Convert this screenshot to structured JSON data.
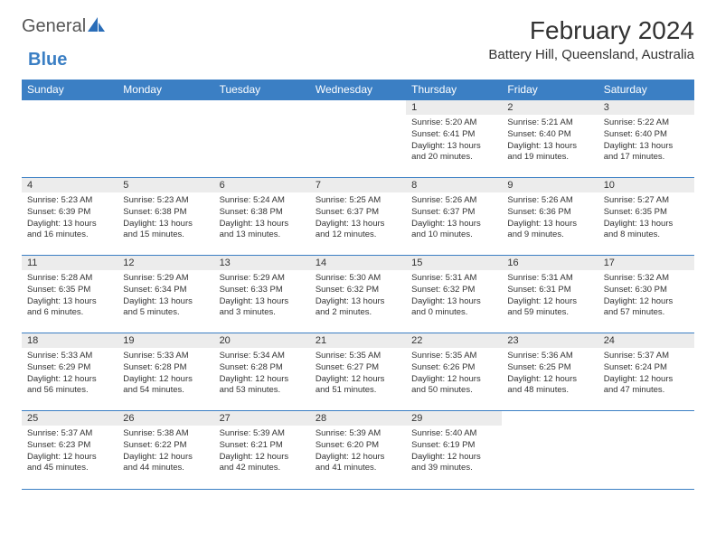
{
  "logo": {
    "text1": "General",
    "text2": "Blue"
  },
  "title": "February 2024",
  "location": "Battery Hill, Queensland, Australia",
  "calendar": {
    "type": "table",
    "header_bg": "#3b7fc4",
    "header_fg": "#ffffff",
    "daynum_bg": "#ececec",
    "rule_color": "#3b7fc4",
    "text_color": "#333333",
    "body_font_size_pt": 7,
    "header_font_size_pt": 9,
    "columns": [
      "Sunday",
      "Monday",
      "Tuesday",
      "Wednesday",
      "Thursday",
      "Friday",
      "Saturday"
    ],
    "first_weekday_index": 4,
    "days": [
      {
        "n": 1,
        "sunrise": "5:20 AM",
        "sunset": "6:41 PM",
        "dl_h": 13,
        "dl_m": 20
      },
      {
        "n": 2,
        "sunrise": "5:21 AM",
        "sunset": "6:40 PM",
        "dl_h": 13,
        "dl_m": 19
      },
      {
        "n": 3,
        "sunrise": "5:22 AM",
        "sunset": "6:40 PM",
        "dl_h": 13,
        "dl_m": 17
      },
      {
        "n": 4,
        "sunrise": "5:23 AM",
        "sunset": "6:39 PM",
        "dl_h": 13,
        "dl_m": 16
      },
      {
        "n": 5,
        "sunrise": "5:23 AM",
        "sunset": "6:38 PM",
        "dl_h": 13,
        "dl_m": 15
      },
      {
        "n": 6,
        "sunrise": "5:24 AM",
        "sunset": "6:38 PM",
        "dl_h": 13,
        "dl_m": 13
      },
      {
        "n": 7,
        "sunrise": "5:25 AM",
        "sunset": "6:37 PM",
        "dl_h": 13,
        "dl_m": 12
      },
      {
        "n": 8,
        "sunrise": "5:26 AM",
        "sunset": "6:37 PM",
        "dl_h": 13,
        "dl_m": 10
      },
      {
        "n": 9,
        "sunrise": "5:26 AM",
        "sunset": "6:36 PM",
        "dl_h": 13,
        "dl_m": 9
      },
      {
        "n": 10,
        "sunrise": "5:27 AM",
        "sunset": "6:35 PM",
        "dl_h": 13,
        "dl_m": 8
      },
      {
        "n": 11,
        "sunrise": "5:28 AM",
        "sunset": "6:35 PM",
        "dl_h": 13,
        "dl_m": 6
      },
      {
        "n": 12,
        "sunrise": "5:29 AM",
        "sunset": "6:34 PM",
        "dl_h": 13,
        "dl_m": 5
      },
      {
        "n": 13,
        "sunrise": "5:29 AM",
        "sunset": "6:33 PM",
        "dl_h": 13,
        "dl_m": 3
      },
      {
        "n": 14,
        "sunrise": "5:30 AM",
        "sunset": "6:32 PM",
        "dl_h": 13,
        "dl_m": 2
      },
      {
        "n": 15,
        "sunrise": "5:31 AM",
        "sunset": "6:32 PM",
        "dl_h": 13,
        "dl_m": 0
      },
      {
        "n": 16,
        "sunrise": "5:31 AM",
        "sunset": "6:31 PM",
        "dl_h": 12,
        "dl_m": 59
      },
      {
        "n": 17,
        "sunrise": "5:32 AM",
        "sunset": "6:30 PM",
        "dl_h": 12,
        "dl_m": 57
      },
      {
        "n": 18,
        "sunrise": "5:33 AM",
        "sunset": "6:29 PM",
        "dl_h": 12,
        "dl_m": 56
      },
      {
        "n": 19,
        "sunrise": "5:33 AM",
        "sunset": "6:28 PM",
        "dl_h": 12,
        "dl_m": 54
      },
      {
        "n": 20,
        "sunrise": "5:34 AM",
        "sunset": "6:28 PM",
        "dl_h": 12,
        "dl_m": 53
      },
      {
        "n": 21,
        "sunrise": "5:35 AM",
        "sunset": "6:27 PM",
        "dl_h": 12,
        "dl_m": 51
      },
      {
        "n": 22,
        "sunrise": "5:35 AM",
        "sunset": "6:26 PM",
        "dl_h": 12,
        "dl_m": 50
      },
      {
        "n": 23,
        "sunrise": "5:36 AM",
        "sunset": "6:25 PM",
        "dl_h": 12,
        "dl_m": 48
      },
      {
        "n": 24,
        "sunrise": "5:37 AM",
        "sunset": "6:24 PM",
        "dl_h": 12,
        "dl_m": 47
      },
      {
        "n": 25,
        "sunrise": "5:37 AM",
        "sunset": "6:23 PM",
        "dl_h": 12,
        "dl_m": 45
      },
      {
        "n": 26,
        "sunrise": "5:38 AM",
        "sunset": "6:22 PM",
        "dl_h": 12,
        "dl_m": 44
      },
      {
        "n": 27,
        "sunrise": "5:39 AM",
        "sunset": "6:21 PM",
        "dl_h": 12,
        "dl_m": 42
      },
      {
        "n": 28,
        "sunrise": "5:39 AM",
        "sunset": "6:20 PM",
        "dl_h": 12,
        "dl_m": 41
      },
      {
        "n": 29,
        "sunrise": "5:40 AM",
        "sunset": "6:19 PM",
        "dl_h": 12,
        "dl_m": 39
      }
    ]
  }
}
